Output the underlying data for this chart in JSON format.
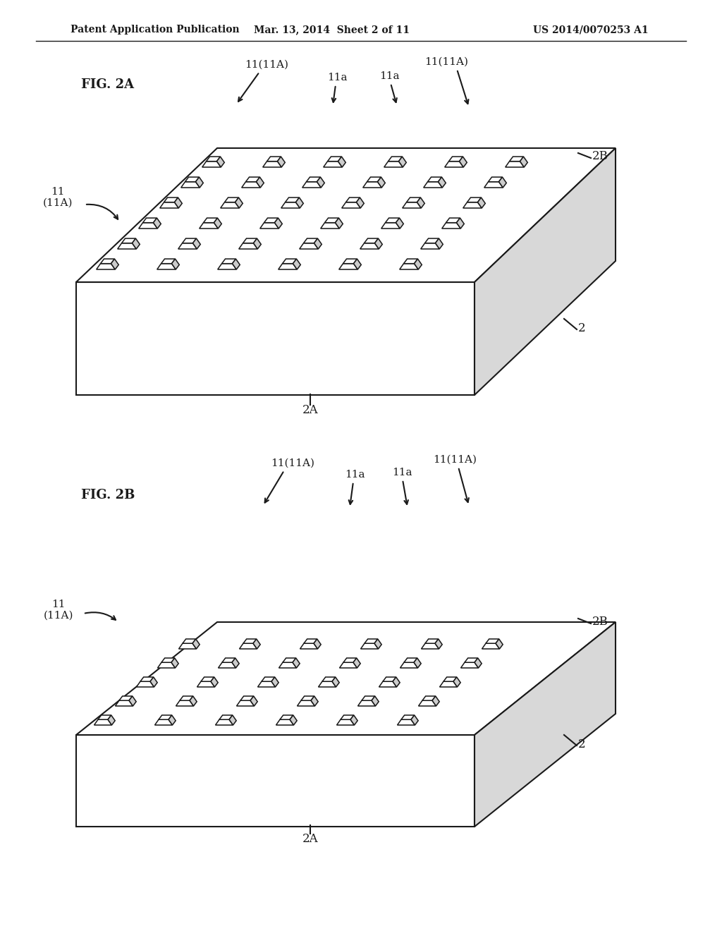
{
  "bg_color": "#ffffff",
  "line_color": "#1a1a1a",
  "line_width": 1.5,
  "header_left": "Patent Application Publication",
  "header_center": "Mar. 13, 2014  Sheet 2 of 11",
  "header_right": "US 2014/0070253 A1",
  "fig2a_label": "FIG. 2A",
  "fig2b_label": "FIG. 2B",
  "label_2": "2",
  "label_2A": "2A",
  "label_2B": "2B"
}
